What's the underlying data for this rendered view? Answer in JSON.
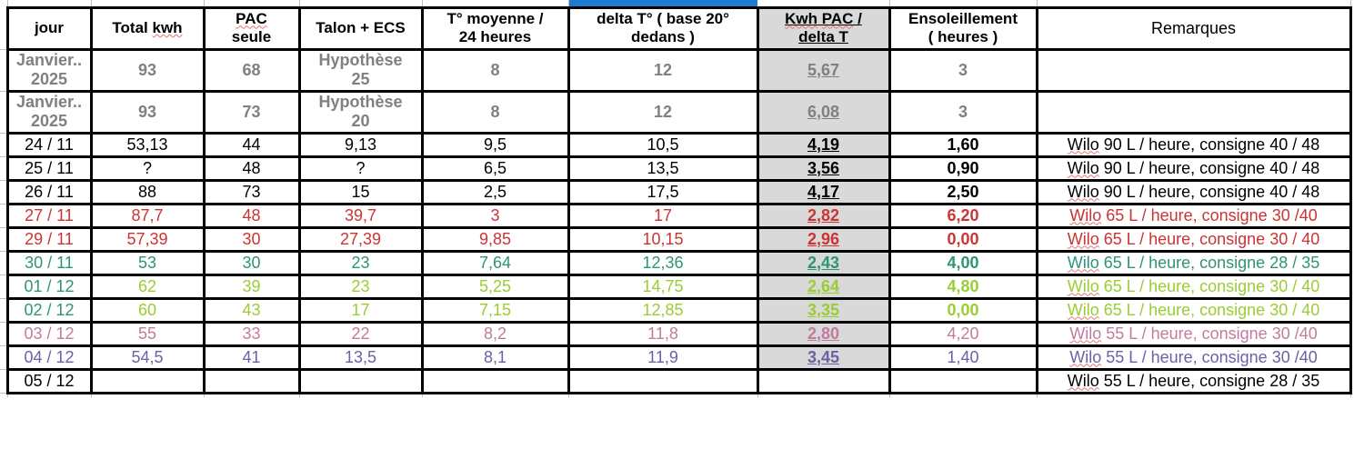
{
  "app": {
    "type": "spreadsheet-heating-log"
  },
  "colors": {
    "black": "#000000",
    "gray": "#808080",
    "red": "#cc3333",
    "teal": "#2e9479",
    "green": "#9acd32",
    "pink": "#c27ba0",
    "purple": "#6e5fa8",
    "kwh_col_bg": "#d9d9d9",
    "selection_blue": "#1f7ad4",
    "border": "#000000"
  },
  "spellcheck_words": [
    "kwh",
    "Kwh",
    "PAC",
    "Wilo"
  ],
  "header": {
    "cols": [
      "jour",
      "Total kwh",
      "PAC\nseule",
      "Talon + ECS",
      "T° moyenne /\n24 heures",
      "delta T° ( base 20°\ndedans )",
      "Kwh PAC /\ndelta T",
      "Ensoleillement\n( heures )",
      "Remarques"
    ]
  },
  "rows": [
    {
      "jour": "Janvier..\n2025",
      "total": "93",
      "pac": "68",
      "talon": "Hypothèse\n25",
      "tmoy": "8",
      "delta": "12",
      "kwh": "5,67",
      "soleil": "3",
      "remarque": "",
      "color": "gray",
      "date_color": "gray",
      "bold": true,
      "soleil_bold": true,
      "kwh_bg": true,
      "tall": true
    },
    {
      "jour": "Janvier..\n2025",
      "total": "93",
      "pac": "73",
      "talon": "Hypothèse\n20",
      "tmoy": "8",
      "delta": "12",
      "kwh": "6,08",
      "soleil": "3",
      "remarque": "",
      "color": "gray",
      "date_color": "gray",
      "bold": true,
      "soleil_bold": true,
      "kwh_bg": true,
      "tall": true
    },
    {
      "jour": "24 / 11",
      "total": "53,13",
      "pac": "44",
      "talon": "9,13",
      "tmoy": "9,5",
      "delta": "10,5",
      "kwh": "4,19",
      "soleil": "1,60",
      "remarque": "Wilo 90 L / heure, consigne 40 / 48",
      "color": "black",
      "date_color": "black",
      "bold": false,
      "soleil_bold": true,
      "kwh_bg": true,
      "tall": false
    },
    {
      "jour": "25 / 11",
      "total": "?",
      "pac": "48",
      "talon": "?",
      "tmoy": "6,5",
      "delta": "13,5",
      "kwh": "3,56",
      "soleil": "0,90",
      "remarque": "Wilo 90 L / heure, consigne 40 / 48",
      "color": "black",
      "date_color": "black",
      "bold": false,
      "soleil_bold": true,
      "kwh_bg": true,
      "tall": false
    },
    {
      "jour": "26 / 11",
      "total": "88",
      "pac": "73",
      "talon": "15",
      "tmoy": "2,5",
      "delta": "17,5",
      "kwh": "4,17",
      "soleil": "2,50",
      "remarque": "Wilo 90 L / heure, consigne 40 / 48",
      "color": "black",
      "date_color": "black",
      "bold": false,
      "soleil_bold": true,
      "kwh_bg": true,
      "tall": false
    },
    {
      "jour": "27 / 11",
      "total": "87,7",
      "pac": "48",
      "talon": "39,7",
      "tmoy": "3",
      "delta": "17",
      "kwh": "2,82",
      "soleil": "6,20",
      "remarque": "Wilo 65 L / heure, consigne 30 /40",
      "color": "red",
      "date_color": "red",
      "bold": false,
      "soleil_bold": true,
      "kwh_bg": true,
      "tall": false
    },
    {
      "jour": "29 / 11",
      "total": "57,39",
      "pac": "30",
      "talon": "27,39",
      "tmoy": "9,85",
      "delta": "10,15",
      "kwh": "2,96",
      "soleil": "0,00",
      "remarque": "Wilo 65 L / heure, consigne 30 / 40",
      "color": "red",
      "date_color": "red",
      "bold": false,
      "soleil_bold": true,
      "kwh_bg": true,
      "tall": false
    },
    {
      "jour": "30 / 11",
      "total": "53",
      "pac": "30",
      "talon": "23",
      "tmoy": "7,64",
      "delta": "12,36",
      "kwh": "2,43",
      "soleil": "4,00",
      "remarque": "Wilo 65 L / heure, consigne 28 / 35",
      "color": "teal",
      "date_color": "teal",
      "bold": false,
      "soleil_bold": true,
      "kwh_bg": true,
      "tall": false
    },
    {
      "jour": "01 / 12",
      "total": "62",
      "pac": "39",
      "talon": "23",
      "tmoy": "5,25",
      "delta": "14,75",
      "kwh": "2,64",
      "soleil": "4,80",
      "remarque": "Wilo 65 L / heure, consigne 30 / 40",
      "color": "green",
      "date_color": "teal",
      "bold": false,
      "soleil_bold": true,
      "kwh_bg": true,
      "tall": false
    },
    {
      "jour": "02 / 12",
      "total": "60",
      "pac": "43",
      "talon": "17",
      "tmoy": "7,15",
      "delta": "12,85",
      "kwh": "3,35",
      "soleil": "0,00",
      "remarque": "Wilo 65 L / heure, consigne 30 / 40",
      "color": "green",
      "date_color": "teal",
      "bold": false,
      "soleil_bold": true,
      "kwh_bg": true,
      "tall": false
    },
    {
      "jour": "03 / 12",
      "total": "55",
      "pac": "33",
      "talon": "22",
      "tmoy": "8,2",
      "delta": "11,8",
      "kwh": "2,80",
      "soleil": "4,20",
      "remarque": "Wilo 55 L / heure, consigne 30 /40",
      "color": "pink",
      "date_color": "pink",
      "bold": false,
      "soleil_bold": false,
      "kwh_bg": true,
      "tall": false
    },
    {
      "jour": "04 / 12",
      "total": "54,5",
      "pac": "41",
      "talon": "13,5",
      "tmoy": "8,1",
      "delta": "11,9",
      "kwh": "3,45",
      "soleil": "1,40",
      "remarque": "Wilo 55 L / heure, consigne 30 /40",
      "color": "purple",
      "date_color": "purple",
      "bold": false,
      "soleil_bold": false,
      "kwh_bg": true,
      "tall": false
    },
    {
      "jour": "05 / 12",
      "total": "",
      "pac": "",
      "talon": "",
      "tmoy": "",
      "delta": "",
      "kwh": "",
      "soleil": "",
      "remarque": "Wilo 55 L / heure, consigne 28 / 35",
      "color": "black",
      "date_color": "black",
      "bold": false,
      "soleil_bold": false,
      "kwh_bg": false,
      "tall": false
    }
  ]
}
